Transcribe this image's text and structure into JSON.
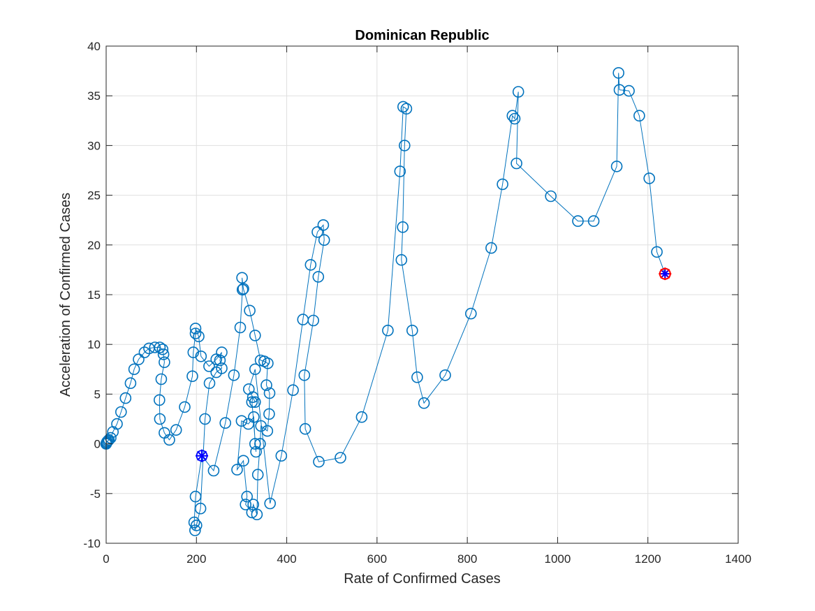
{
  "chart_data": {
    "type": "line",
    "title": "Dominican Republic",
    "xlabel": "Rate of Confirmed Cases",
    "ylabel": "Acceleration of Confirmed Cases",
    "xlim": [
      0,
      1400
    ],
    "ylim": [
      -10,
      40
    ],
    "xticks": [
      0,
      200,
      400,
      600,
      800,
      1000,
      1200,
      1400
    ],
    "yticks": [
      -10,
      -5,
      0,
      5,
      10,
      15,
      20,
      25,
      30,
      35,
      40
    ],
    "grid": true,
    "legend": "none",
    "colors": {
      "series": "#0072BD",
      "start_marker": "#0000FF",
      "end_marker": "#FF0000",
      "end_marker_overlay": "#0000FF"
    },
    "series": [
      {
        "marker": "circle",
        "points": [
          [
            0,
            0
          ],
          [
            1,
            0.1
          ],
          [
            2,
            0.2
          ],
          [
            4,
            0.3
          ],
          [
            6,
            0.4
          ],
          [
            10,
            0.6
          ],
          [
            15,
            1.2
          ],
          [
            24,
            2.0
          ],
          [
            33,
            3.2
          ],
          [
            43,
            4.6
          ],
          [
            54,
            6.1
          ],
          [
            62,
            7.5
          ],
          [
            72,
            8.5
          ],
          [
            85,
            9.2
          ],
          [
            95,
            9.6
          ],
          [
            108,
            9.7
          ],
          [
            119,
            9.7
          ],
          [
            125,
            9.5
          ],
          [
            127,
            9.0
          ],
          [
            129,
            8.2
          ],
          [
            122,
            6.5
          ],
          [
            118,
            4.4
          ],
          [
            119,
            2.5
          ],
          [
            129,
            1.1
          ],
          [
            140,
            0.4
          ],
          [
            155,
            1.4
          ],
          [
            174,
            3.7
          ],
          [
            191,
            6.8
          ],
          [
            193,
            9.2
          ],
          [
            198,
            11.1
          ],
          [
            198,
            11.6
          ],
          [
            205,
            10.8
          ],
          [
            210,
            8.8
          ],
          [
            228,
            7.8
          ],
          [
            244,
            8.5
          ],
          [
            256,
            9.2
          ],
          [
            252,
            8.4
          ],
          [
            256,
            7.6
          ],
          [
            244,
            7.2
          ],
          [
            229,
            6.1
          ],
          [
            219,
            2.5
          ],
          [
            209,
            -6.5
          ],
          [
            200,
            -8.2
          ],
          [
            197,
            -8.7
          ],
          [
            195,
            -7.9
          ],
          [
            198,
            -5.3
          ],
          [
            212,
            -1.2
          ],
          [
            238,
            -2.7
          ],
          [
            264,
            2.1
          ],
          [
            283,
            6.9
          ],
          [
            297,
            11.7
          ],
          [
            302,
            15.5
          ],
          [
            301,
            16.7
          ],
          [
            304,
            15.6
          ],
          [
            318,
            13.4
          ],
          [
            330,
            10.9
          ],
          [
            342,
            8.4
          ],
          [
            350,
            8.3
          ],
          [
            358,
            8.1
          ],
          [
            355,
            5.9
          ],
          [
            362,
            5.1
          ],
          [
            361,
            3.0
          ],
          [
            357,
            1.3
          ],
          [
            343,
            1.8
          ],
          [
            341,
            0.0
          ],
          [
            336,
            -3.1
          ],
          [
            334,
            -7.1
          ],
          [
            326,
            -6.1
          ],
          [
            323,
            -6.9
          ],
          [
            309,
            -6.1
          ],
          [
            312,
            -5.3
          ],
          [
            304,
            -1.7
          ],
          [
            290,
            -2.6
          ],
          [
            300,
            2.3
          ],
          [
            315,
            2.0
          ],
          [
            327,
            2.7
          ],
          [
            330,
            0.0
          ],
          [
            332,
            -0.8
          ],
          [
            323,
            4.2
          ],
          [
            325,
            4.7
          ],
          [
            330,
            4.2
          ],
          [
            316,
            5.5
          ],
          [
            330,
            7.5
          ],
          [
            363,
            -6.0
          ],
          [
            388,
            -1.2
          ],
          [
            414,
            5.4
          ],
          [
            436,
            12.5
          ],
          [
            453,
            18.0
          ],
          [
            468,
            21.3
          ],
          [
            481,
            22.0
          ],
          [
            483,
            20.5
          ],
          [
            470,
            16.8
          ],
          [
            459,
            12.4
          ],
          [
            439,
            6.9
          ],
          [
            441,
            1.5
          ],
          [
            471,
            -1.8
          ],
          [
            519,
            -1.4
          ],
          [
            566,
            2.7
          ],
          [
            624,
            11.4
          ],
          [
            651,
            27.4
          ],
          [
            658,
            33.9
          ],
          [
            665,
            33.7
          ],
          [
            661,
            30.0
          ],
          [
            657,
            21.8
          ],
          [
            654,
            18.5
          ],
          [
            678,
            11.4
          ],
          [
            689,
            6.7
          ],
          [
            704,
            4.1
          ],
          [
            751,
            6.9
          ],
          [
            808,
            13.1
          ],
          [
            853,
            19.7
          ],
          [
            878,
            26.1
          ],
          [
            900,
            33.0
          ],
          [
            905,
            32.7
          ],
          [
            913,
            35.4
          ],
          [
            909,
            28.2
          ],
          [
            985,
            24.9
          ],
          [
            1045,
            22.4
          ],
          [
            1080,
            22.4
          ],
          [
            1131,
            27.9
          ],
          [
            1135,
            37.3
          ],
          [
            1137,
            35.6
          ],
          [
            1158,
            35.5
          ],
          [
            1181,
            33.0
          ],
          [
            1203,
            26.7
          ],
          [
            1220,
            19.3
          ],
          [
            1238,
            17.1
          ]
        ]
      }
    ],
    "start_point": {
      "x": 212,
      "y": -1.2,
      "marker": "asterisk"
    },
    "end_point": {
      "x": 1238,
      "y": 17.1,
      "marker": "asterisk-circle"
    }
  }
}
